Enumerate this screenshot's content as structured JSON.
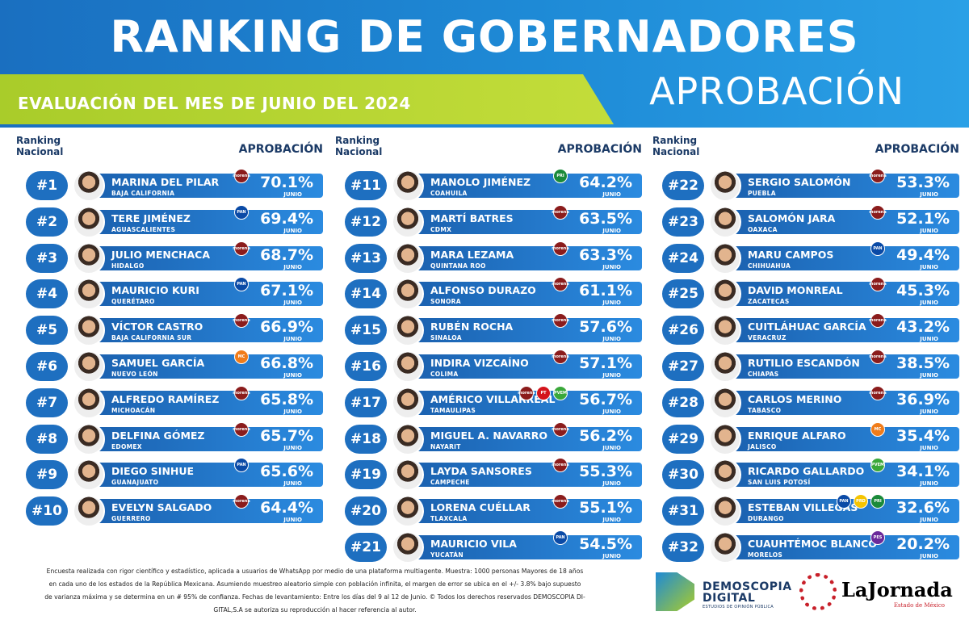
{
  "header": {
    "title": "RANKING DE GOBERNADORES",
    "subtitle_right": "APROBACIÓN",
    "subtitle_left": "EVALUACIÓN DEL MES DE JUNIO DEL 2024"
  },
  "column_head": {
    "rank_label_1": "Ranking",
    "rank_label_2": "Nacional",
    "aprob_label": "APROBACIÓN"
  },
  "columns": [
    {
      "rows": [
        {
          "rank": "#1",
          "name": "MARINA DEL PILAR",
          "state": "BAJA CALIFORNIA",
          "pct": "70.1%",
          "month": "JUNIO",
          "parties": [
            {
              "label": "morena",
              "color": "#8b1c1c"
            }
          ]
        },
        {
          "rank": "#2",
          "name": "TERE JIMÉNEZ",
          "state": "AGUASCALIENTES",
          "pct": "69.4%",
          "month": "JUNIO",
          "parties": [
            {
              "label": "PAN",
              "color": "#0a4aa6"
            }
          ]
        },
        {
          "rank": "#3",
          "name": "JULIO MENCHACA",
          "state": "HIDALGO",
          "pct": "68.7%",
          "month": "JUNIO",
          "parties": [
            {
              "label": "morena",
              "color": "#8b1c1c"
            }
          ]
        },
        {
          "rank": "#4",
          "name": "MAURICIO KURI",
          "state": "QUERÉTARO",
          "pct": "67.1%",
          "month": "JUNIO",
          "parties": [
            {
              "label": "PAN",
              "color": "#0a4aa6"
            }
          ]
        },
        {
          "rank": "#5",
          "name": "VÍCTOR CASTRO",
          "state": "BAJA CALIFORNIA SUR",
          "pct": "66.9%",
          "month": "JUNIO",
          "parties": [
            {
              "label": "morena",
              "color": "#8b1c1c"
            }
          ]
        },
        {
          "rank": "#6",
          "name": "SAMUEL GARCÍA",
          "state": "NUEVO LEÓN",
          "pct": "66.8%",
          "month": "JUNIO",
          "parties": [
            {
              "label": "MC",
              "color": "#f07c1a"
            }
          ]
        },
        {
          "rank": "#7",
          "name": "ALFREDO RAMÍREZ",
          "state": "MICHOACÁN",
          "pct": "65.8%",
          "month": "JUNIO",
          "parties": [
            {
              "label": "morena",
              "color": "#8b1c1c"
            }
          ]
        },
        {
          "rank": "#8",
          "name": "DELFINA GÓMEZ",
          "state": "EDOMEX",
          "pct": "65.7%",
          "month": "JUNIO",
          "parties": [
            {
              "label": "morena",
              "color": "#8b1c1c"
            }
          ]
        },
        {
          "rank": "#9",
          "name": "DIEGO SINHUE",
          "state": "GUANAJUATO",
          "pct": "65.6%",
          "month": "JUNIO",
          "parties": [
            {
              "label": "PAN",
              "color": "#0a4aa6"
            }
          ]
        },
        {
          "rank": "#10",
          "name": "EVELYN SALGADO",
          "state": "GUERRERO",
          "pct": "64.4%",
          "month": "JUNIO",
          "parties": [
            {
              "label": "morena",
              "color": "#8b1c1c"
            }
          ]
        }
      ]
    },
    {
      "rows": [
        {
          "rank": "#11",
          "name": "MANOLO JIMÉNEZ",
          "state": "COAHUILA",
          "pct": "64.2%",
          "month": "JUNIO",
          "parties": [
            {
              "label": "PRI",
              "color": "#1a8a3a"
            }
          ]
        },
        {
          "rank": "#12",
          "name": "MARTÍ BATRES",
          "state": "CDMX",
          "pct": "63.5%",
          "month": "JUNIO",
          "parties": [
            {
              "label": "morena",
              "color": "#8b1c1c"
            }
          ]
        },
        {
          "rank": "#13",
          "name": "MARA LEZAMA",
          "state": "QUINTANA ROO",
          "pct": "63.3%",
          "month": "JUNIO",
          "parties": [
            {
              "label": "morena",
              "color": "#8b1c1c"
            }
          ]
        },
        {
          "rank": "#14",
          "name": "ALFONSO DURAZO",
          "state": "SONORA",
          "pct": "61.1%",
          "month": "JUNIO",
          "parties": [
            {
              "label": "morena",
              "color": "#8b1c1c"
            }
          ]
        },
        {
          "rank": "#15",
          "name": "RUBÉN ROCHA",
          "state": "SINALOA",
          "pct": "57.6%",
          "month": "JUNIO",
          "parties": [
            {
              "label": "morena",
              "color": "#8b1c1c"
            }
          ]
        },
        {
          "rank": "#16",
          "name": "INDIRA VIZCAÍNO",
          "state": "COLIMA",
          "pct": "57.1%",
          "month": "JUNIO",
          "parties": [
            {
              "label": "morena",
              "color": "#8b1c1c"
            }
          ]
        },
        {
          "rank": "#17",
          "name": "AMÉRICO VILLARREAL",
          "state": "TAMAULIPAS",
          "pct": "56.7%",
          "month": "JUNIO",
          "parties": [
            {
              "label": "morena",
              "color": "#8b1c1c"
            },
            {
              "label": "PT",
              "color": "#d4141c"
            },
            {
              "label": "PVEM",
              "color": "#3aa83a"
            }
          ]
        },
        {
          "rank": "#18",
          "name": "MIGUEL A. NAVARRO",
          "state": "NAYARIT",
          "pct": "56.2%",
          "month": "JUNIO",
          "parties": [
            {
              "label": "morena",
              "color": "#8b1c1c"
            }
          ]
        },
        {
          "rank": "#19",
          "name": "LAYDA SANSORES",
          "state": "CAMPECHE",
          "pct": "55.3%",
          "month": "JUNIO",
          "parties": [
            {
              "label": "morena",
              "color": "#8b1c1c"
            }
          ]
        },
        {
          "rank": "#20",
          "name": "LORENA CUÉLLAR",
          "state": "TLAXCALA",
          "pct": "55.1%",
          "month": "JUNIO",
          "parties": [
            {
              "label": "morena",
              "color": "#8b1c1c"
            }
          ]
        },
        {
          "rank": "#21",
          "name": "MAURICIO VILA",
          "state": "YUCATÁN",
          "pct": "54.5%",
          "month": "JUNIO",
          "parties": [
            {
              "label": "PAN",
              "color": "#0a4aa6"
            }
          ]
        }
      ]
    },
    {
      "rows": [
        {
          "rank": "#22",
          "name": "SERGIO SALOMÓN",
          "state": "PUEBLA",
          "pct": "53.3%",
          "month": "JUNIO",
          "parties": [
            {
              "label": "morena",
              "color": "#8b1c1c"
            }
          ]
        },
        {
          "rank": "#23",
          "name": "SALOMÓN JARA",
          "state": "OAXACA",
          "pct": "52.1%",
          "month": "JUNIO",
          "parties": [
            {
              "label": "morena",
              "color": "#8b1c1c"
            }
          ]
        },
        {
          "rank": "#24",
          "name": "MARU CAMPOS",
          "state": "CHIHUAHUA",
          "pct": "49.4%",
          "month": "JUNIO",
          "parties": [
            {
              "label": "PAN",
              "color": "#0a4aa6"
            }
          ]
        },
        {
          "rank": "#25",
          "name": "DAVID MONREAL",
          "state": "ZACATECAS",
          "pct": "45.3%",
          "month": "JUNIO",
          "parties": [
            {
              "label": "morena",
              "color": "#8b1c1c"
            }
          ]
        },
        {
          "rank": "#26",
          "name": "CUITLÁHUAC GARCÍA",
          "state": "VERACRUZ",
          "pct": "43.2%",
          "month": "JUNIO",
          "parties": [
            {
              "label": "morena",
              "color": "#8b1c1c"
            }
          ]
        },
        {
          "rank": "#27",
          "name": "RUTILIO ESCANDÓN",
          "state": "CHIAPAS",
          "pct": "38.5%",
          "month": "JUNIO",
          "parties": [
            {
              "label": "morena",
              "color": "#8b1c1c"
            }
          ]
        },
        {
          "rank": "#28",
          "name": "CARLOS MERINO",
          "state": "TABASCO",
          "pct": "36.9%",
          "month": "JUNIO",
          "parties": [
            {
              "label": "morena",
              "color": "#8b1c1c"
            }
          ]
        },
        {
          "rank": "#29",
          "name": "ENRIQUE ALFARO",
          "state": "JALISCO",
          "pct": "35.4%",
          "month": "JUNIO",
          "parties": [
            {
              "label": "MC",
              "color": "#f07c1a"
            }
          ]
        },
        {
          "rank": "#30",
          "name": "RICARDO GALLARDO",
          "state": "SAN LUIS POTOSÍ",
          "pct": "34.1%",
          "month": "JUNIO",
          "parties": [
            {
              "label": "PVEM",
              "color": "#3aa83a"
            }
          ]
        },
        {
          "rank": "#31",
          "name": "ESTEBAN VILLEGAS",
          "state": "DURANGO",
          "pct": "32.6%",
          "month": "JUNIO",
          "parties": [
            {
              "label": "PAN",
              "color": "#0a4aa6"
            },
            {
              "label": "PRD",
              "color": "#f5c400"
            },
            {
              "label": "PRI",
              "color": "#1a8a3a"
            }
          ]
        },
        {
          "rank": "#32",
          "name": "CUAUHTÉMOC BLANCO",
          "state": "MORELOS",
          "pct": "20.2%",
          "month": "JUNIO",
          "parties": [
            {
              "label": "PES",
              "color": "#6a2a9a"
            }
          ]
        }
      ]
    }
  ],
  "footer": {
    "line1": "Encuesta realizada con rigor científico y estadístico, aplicada a usuarios de WhatsApp por medio de una plataforma multiagente. Muestra: 1000 personas Mayores de 18 años",
    "line2": "en cada uno de los estados de la República Mexicana. Asumiendo muestreo aleatorio simple con población infinita, el margen de error se ubica en el +/- 3.8% bajo supuesto",
    "line3": "de varianza máxima y se determina en un # 95% de confianza. Fechas de levantamiento: Entre los días del 9 al 12 de Junio. © Todos los derechos reservados DEMOSCOPIA DI-",
    "line4": "GITAL,S.A se autoriza su reproducción al hacer referencia al autor."
  },
  "logos": {
    "dd_line1": "DEMOSCOPIA",
    "dd_line2": "DIGITAL",
    "dd_line3": "ESTUDIOS DE OPINIÓN PÚBLICA",
    "lj_name": "LaJornada",
    "lj_sub": "Estado de México"
  }
}
